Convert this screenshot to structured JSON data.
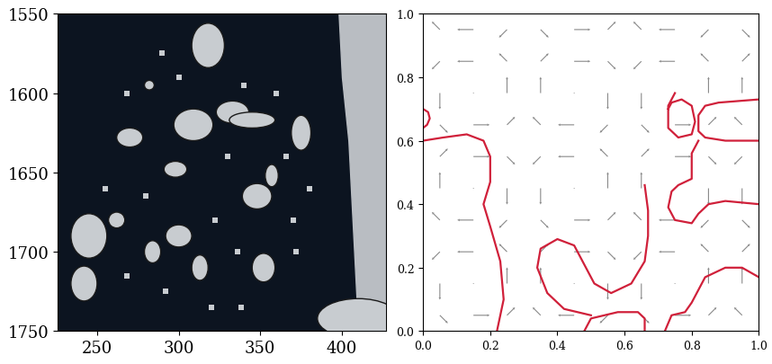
{
  "chart_data": [
    {
      "type": "image",
      "xlim": [
        226,
        427
      ],
      "ylim": [
        1750,
        1550
      ],
      "xticks": [
        250,
        300,
        350,
        400
      ],
      "yticks": [
        1550,
        1600,
        1650,
        1700,
        1750
      ],
      "floes": [
        {
          "x": 318,
          "y": 1570,
          "w": 20,
          "h": 28
        },
        {
          "x": 333,
          "y": 1612,
          "w": 20,
          "h": 14
        },
        {
          "x": 309,
          "y": 1620,
          "w": 24,
          "h": 20
        },
        {
          "x": 270,
          "y": 1628,
          "w": 16,
          "h": 12
        },
        {
          "x": 345,
          "y": 1617,
          "w": 28,
          "h": 10
        },
        {
          "x": 375,
          "y": 1625,
          "w": 12,
          "h": 22
        },
        {
          "x": 357,
          "y": 1652,
          "w": 8,
          "h": 14
        },
        {
          "x": 298,
          "y": 1648,
          "w": 14,
          "h": 10
        },
        {
          "x": 348,
          "y": 1665,
          "w": 18,
          "h": 16
        },
        {
          "x": 245,
          "y": 1690,
          "w": 22,
          "h": 28
        },
        {
          "x": 262,
          "y": 1680,
          "w": 10,
          "h": 10
        },
        {
          "x": 242,
          "y": 1720,
          "w": 16,
          "h": 22
        },
        {
          "x": 284,
          "y": 1700,
          "w": 10,
          "h": 14
        },
        {
          "x": 300,
          "y": 1690,
          "w": 16,
          "h": 14
        },
        {
          "x": 313,
          "y": 1710,
          "w": 10,
          "h": 16
        },
        {
          "x": 352,
          "y": 1710,
          "w": 14,
          "h": 18
        },
        {
          "x": 410,
          "y": 1742,
          "w": 50,
          "h": 25
        },
        {
          "x": 282,
          "y": 1595,
          "w": 6,
          "h": 6
        }
      ],
      "fragments_x": [
        290,
        300,
        340,
        360,
        366,
        280,
        322,
        330,
        370,
        255,
        268,
        292,
        336,
        372,
        380,
        320,
        268,
        338
      ],
      "fragments_y": [
        1575,
        1590,
        1595,
        1600,
        1640,
        1665,
        1680,
        1640,
        1680,
        1660,
        1715,
        1725,
        1700,
        1700,
        1660,
        1735,
        1600,
        1735
      ],
      "shore_x": [
        398,
        400,
        404,
        406,
        408,
        410
      ],
      "shore_y": [
        1550,
        1590,
        1630,
        1670,
        1710,
        1750
      ],
      "color": "#c8ccd0"
    },
    {
      "type": "quiver",
      "xlim": [
        0,
        1
      ],
      "ylim": [
        0,
        1
      ],
      "xticks": [
        {
          "value": 0,
          "label": "0.0"
        },
        {
          "value": 0.2,
          "label": "0.2"
        },
        {
          "value": 0.4,
          "label": "0.4"
        },
        {
          "value": 0.6,
          "label": "0.6"
        },
        {
          "value": 0.8,
          "label": "0.8"
        },
        {
          "value": 1,
          "label": "1.0"
        }
      ],
      "yticks": [
        {
          "value": 0,
          "label": "0.0"
        },
        {
          "value": 0.2,
          "label": "0.2"
        },
        {
          "value": 0.4,
          "label": "0.4"
        },
        {
          "value": 0.6,
          "label": "0.6"
        },
        {
          "value": 0.8,
          "label": "0.8"
        },
        {
          "value": 1,
          "label": "1.0"
        }
      ],
      "grid_x": [
        0.05,
        0.15,
        0.25,
        0.35,
        0.45,
        0.55,
        0.65,
        0.75,
        0.85,
        0.95
      ],
      "grid_y": [
        0.05,
        0.15,
        0.25,
        0.35,
        0.45,
        0.55,
        0.65,
        0.75,
        0.85,
        0.95
      ],
      "u": [
        [
          0.43,
          0.87,
          0.43,
          -0.43,
          -0.87,
          -0.43,
          0.43,
          0.87,
          0.43,
          -0.43
        ],
        [
          0,
          0,
          0,
          0,
          0,
          0,
          0,
          0,
          0,
          0
        ],
        [
          -0.43,
          -0.87,
          -0.43,
          0.43,
          0.87,
          0.43,
          -0.43,
          -0.87,
          -0.43,
          0.43
        ],
        [
          -0.43,
          -0.87,
          -0.43,
          0.43,
          0.87,
          0.43,
          -0.43,
          -0.87,
          -0.43,
          0.43
        ],
        [
          0,
          0,
          0,
          0,
          0,
          0,
          0,
          0,
          0,
          0
        ],
        [
          0.43,
          0.87,
          0.43,
          -0.43,
          -0.87,
          -0.43,
          0.43,
          0.87,
          0.43,
          -0.43
        ],
        [
          0.43,
          0.87,
          0.43,
          -0.43,
          -0.87,
          -0.43,
          0.43,
          0.87,
          0.43,
          -0.43
        ],
        [
          0,
          0,
          0,
          0,
          0,
          0,
          0,
          0,
          0,
          0
        ],
        [
          -0.43,
          -0.87,
          -0.43,
          0.43,
          0.87,
          0.43,
          -0.43,
          -0.87,
          -0.43,
          0.43
        ],
        [
          -0.43,
          -0.87,
          -0.43,
          0.43,
          0.87,
          0.43,
          -0.43,
          -0.87,
          -0.43,
          0.43
        ]
      ],
      "v": [
        [
          -0.43,
          0,
          0.43,
          0.43,
          0,
          -0.43,
          -0.43,
          0,
          0.43,
          0.43
        ],
        [
          -0.87,
          0,
          0.87,
          0.87,
          0,
          -0.87,
          -0.87,
          0,
          0.87,
          0.87
        ],
        [
          -0.43,
          0,
          0.43,
          0.43,
          0,
          -0.43,
          -0.43,
          0,
          0.43,
          0.43
        ],
        [
          0.43,
          0,
          -0.43,
          -0.43,
          0,
          0.43,
          0.43,
          0,
          -0.43,
          -0.43
        ],
        [
          0.87,
          0,
          -0.87,
          -0.87,
          0,
          0.87,
          0.87,
          0,
          -0.87,
          -0.87
        ],
        [
          0.43,
          0,
          -0.43,
          -0.43,
          0,
          0.43,
          0.43,
          0,
          -0.43,
          -0.43
        ],
        [
          -0.43,
          0,
          0.43,
          0.43,
          0,
          -0.43,
          -0.43,
          0,
          0.43,
          0.43
        ],
        [
          -0.87,
          0,
          0.87,
          0.87,
          0,
          -0.87,
          -0.87,
          0,
          0.87,
          0.87
        ],
        [
          -0.43,
          0,
          0.43,
          0.43,
          0,
          -0.43,
          -0.43,
          0,
          0.43,
          0.43
        ],
        [
          0.43,
          0,
          -0.43,
          -0.43,
          0,
          0.43,
          0.43,
          0,
          -0.43,
          -0.43
        ]
      ],
      "contours": [
        {
          "x": [
            0,
            0.015,
            0.02,
            0.012,
            0
          ],
          "y": [
            0.7,
            0.69,
            0.67,
            0.65,
            0.64
          ]
        },
        {
          "x": [
            0,
            0.06,
            0.13,
            0.18,
            0.2,
            0.2,
            0.18,
            0.2,
            0.23,
            0.24,
            0.22
          ],
          "y": [
            0.6,
            0.61,
            0.62,
            0.6,
            0.55,
            0.47,
            0.4,
            0.33,
            0.22,
            0.1,
            0
          ]
        },
        {
          "x": [
            0.5,
            0.42,
            0.37,
            0.34,
            0.35,
            0.4,
            0.45,
            0.48,
            0.51,
            0.56,
            0.62,
            0.66,
            0.67,
            0.67,
            0.66
          ],
          "y": [
            0.05,
            0.07,
            0.12,
            0.2,
            0.26,
            0.29,
            0.27,
            0.21,
            0.15,
            0.12,
            0.15,
            0.22,
            0.3,
            0.38,
            0.46
          ]
        },
        {
          "x": [
            0.48,
            0.5,
            0.58,
            0.64,
            0.66,
            0.66
          ],
          "y": [
            0,
            0.04,
            0.06,
            0.06,
            0.04,
            0
          ]
        },
        {
          "x": [
            0.72,
            0.74,
            0.78,
            0.8,
            0.82,
            0.84,
            0.86,
            0.9,
            0.95,
            1
          ],
          "y": [
            0,
            0.05,
            0.06,
            0.09,
            0.13,
            0.17,
            0.18,
            0.2,
            0.2,
            0.17
          ]
        },
        {
          "x": [
            0.75,
            0.73,
            0.73,
            0.76,
            0.8,
            0.81,
            0.8,
            0.77,
            0.74,
            0.73
          ],
          "y": [
            0.75,
            0.71,
            0.64,
            0.61,
            0.62,
            0.66,
            0.71,
            0.73,
            0.72,
            0.7
          ]
        },
        {
          "x": [
            1,
            0.88,
            0.84,
            0.82,
            0.82,
            0.84,
            0.9,
            1
          ],
          "y": [
            0.73,
            0.72,
            0.71,
            0.68,
            0.63,
            0.61,
            0.6,
            0.6
          ]
        },
        {
          "x": [
            0.82,
            0.8,
            0.8,
            0.76,
            0.74,
            0.73,
            0.75,
            0.8,
            0.82,
            0.85,
            0.9,
            1
          ],
          "y": [
            0.6,
            0.56,
            0.48,
            0.46,
            0.44,
            0.39,
            0.35,
            0.34,
            0.37,
            0.4,
            0.41,
            0.4
          ]
        }
      ],
      "color": "#d0203a"
    }
  ]
}
